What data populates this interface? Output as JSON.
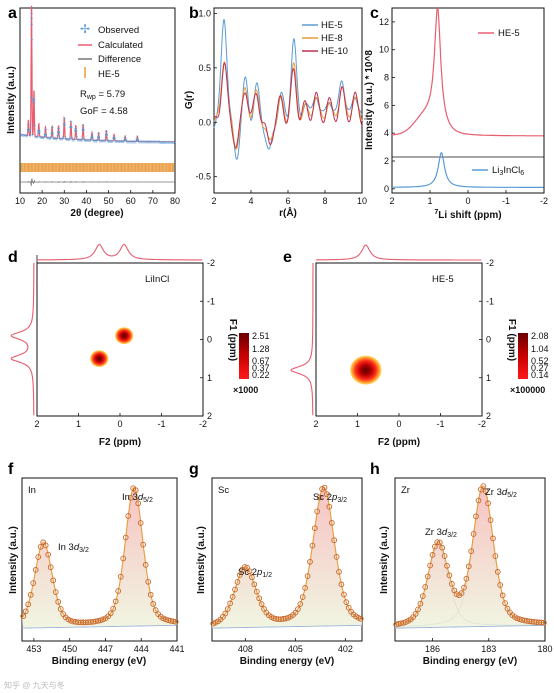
{
  "colors": {
    "axis": "#111111",
    "orange": "#e89a3c",
    "pink": "#e85d6f",
    "blue": "#5b9bd5",
    "gray": "#888888",
    "darkred": "#8b0000",
    "red": "#ff3030",
    "yellow": "#ffd75a"
  },
  "chart_data": [
    {
      "panel": "a",
      "type": "line",
      "xlabel": "2θ (degree)",
      "ylabel": "Intensity (a.u.)",
      "xlim": [
        10,
        80
      ],
      "xticks": [
        "10",
        "20",
        "30",
        "40",
        "50",
        "60",
        "70",
        "80"
      ],
      "legend": [
        "Observed",
        "Calculated",
        "Difference",
        "HE-5"
      ],
      "legend_location": "top-right",
      "annotations": {
        "rwp_label": "R",
        "rwp_sub": "wp",
        "rwp_value": " = 5.79",
        "gof": "GoF = 4.58"
      },
      "peaks": [
        {
          "x": 15.2,
          "h": 1.0
        },
        {
          "x": 16.3,
          "h": 0.35
        },
        {
          "x": 13.8,
          "h": 0.12
        },
        {
          "x": 18.5,
          "h": 0.1
        },
        {
          "x": 21.5,
          "h": 0.08
        },
        {
          "x": 24.5,
          "h": 0.09
        },
        {
          "x": 27.4,
          "h": 0.1
        },
        {
          "x": 30.0,
          "h": 0.16
        },
        {
          "x": 33.0,
          "h": 0.14
        },
        {
          "x": 35.2,
          "h": 0.11
        },
        {
          "x": 38.5,
          "h": 0.12
        },
        {
          "x": 42.5,
          "h": 0.06
        },
        {
          "x": 45.5,
          "h": 0.06
        },
        {
          "x": 49.0,
          "h": 0.08
        },
        {
          "x": 52.5,
          "h": 0.05
        },
        {
          "x": 57.5,
          "h": 0.04
        },
        {
          "x": 63.0,
          "h": 0.04
        }
      ]
    },
    {
      "panel": "b",
      "type": "line",
      "xlabel": "r(Å)",
      "ylabel": "G(r)",
      "xlim": [
        2,
        10
      ],
      "ylim": [
        -0.65,
        1.05
      ],
      "xticks": [
        "2",
        "4",
        "6",
        "8",
        "10"
      ],
      "yticks": [
        "-0.5",
        "0.0",
        "0.5",
        "1.0"
      ],
      "series": [
        {
          "name": "HE-5",
          "peaks": [
            [
              2.55,
              1.0
            ],
            [
              3.2,
              -0.3
            ],
            [
              3.7,
              0.35
            ],
            [
              4.3,
              0.3
            ],
            [
              5.0,
              -0.3
            ],
            [
              5.6,
              0.25
            ],
            [
              6.3,
              0.75
            ],
            [
              6.9,
              0.2
            ],
            [
              7.5,
              0.3
            ],
            [
              8.2,
              0.25
            ],
            [
              8.9,
              0.45
            ],
            [
              9.6,
              0.3
            ]
          ]
        },
        {
          "name": "HE-8",
          "peaks": [
            [
              2.55,
              0.6
            ],
            [
              3.2,
              -0.2
            ],
            [
              3.7,
              0.3
            ],
            [
              4.3,
              0.25
            ],
            [
              5.0,
              -0.2
            ],
            [
              5.6,
              0.2
            ],
            [
              6.3,
              0.5
            ],
            [
              6.9,
              0.15
            ],
            [
              7.5,
              0.25
            ],
            [
              8.2,
              0.2
            ],
            [
              8.9,
              0.35
            ],
            [
              9.6,
              0.25
            ]
          ]
        },
        {
          "name": "HE-10",
          "peaks": [
            [
              2.55,
              0.55
            ],
            [
              3.2,
              -0.2
            ],
            [
              3.7,
              0.3
            ],
            [
              4.3,
              0.25
            ],
            [
              5.0,
              -0.2
            ],
            [
              5.6,
              0.2
            ],
            [
              6.3,
              0.45
            ],
            [
              6.9,
              0.15
            ],
            [
              7.5,
              0.25
            ],
            [
              8.2,
              0.2
            ],
            [
              8.9,
              0.3
            ],
            [
              9.6,
              0.25
            ]
          ]
        }
      ]
    },
    {
      "panel": "c",
      "type": "line",
      "xlabel_prefix": "7",
      "xlabel_rest": "Li shift (ppm)",
      "ylabel": "Intensity (a.u.) * 10^8",
      "xlim": [
        2,
        -2
      ],
      "ylim": [
        -0.3,
        13
      ],
      "xticks": [
        "2",
        "1",
        "0",
        "-1",
        "-2"
      ],
      "yticks": [
        "0",
        "2",
        "4",
        "6",
        "8",
        "10",
        "12"
      ],
      "series": [
        {
          "name": "HE-5",
          "peak_x": 0.8,
          "peak_y": 12.2,
          "baseline": 3.8
        },
        {
          "name": "Li3InCl6",
          "peak_x": 0.7,
          "peak_y": 2.6,
          "baseline": 0.1
        }
      ],
      "legend": {
        "he5": "HE-5",
        "li_a": "Li",
        "li_sub1": "3",
        "li_b": "InCl",
        "li_sub2": "6"
      }
    },
    {
      "panel": "d",
      "type": "heatmap",
      "xlabel": "F2 (ppm)",
      "ylabel": "F1 (ppm)",
      "xlim": [
        2,
        -2
      ],
      "ylim": [
        -2,
        2
      ],
      "xticks": [
        "2",
        "1",
        "0",
        "-1",
        "-2"
      ],
      "yticks": [
        "-2",
        "-1",
        "0",
        "1",
        "2"
      ],
      "label": "LiInCl",
      "colorbar": {
        "ticks": [
          "2.51",
          "1.28",
          "0.67",
          "0.37",
          "0.22"
        ],
        "scale": "×1000"
      },
      "spots": [
        {
          "x": -0.1,
          "y": -0.1,
          "r": 0.22
        },
        {
          "x": 0.5,
          "y": 0.5,
          "r": 0.22
        }
      ]
    },
    {
      "panel": "e",
      "type": "heatmap",
      "xlabel": "F2 (ppm)",
      "ylabel": "F1 (ppm)",
      "xlim": [
        2,
        -2
      ],
      "ylim": [
        -2,
        2
      ],
      "xticks": [
        "2",
        "1",
        "0",
        "-1",
        "-2"
      ],
      "yticks": [
        "-2",
        "-1",
        "0",
        "1",
        "2"
      ],
      "label": "HE-5",
      "colorbar": {
        "ticks": [
          "2.08",
          "1.04",
          "0.52",
          "0.27",
          "0.14"
        ],
        "scale": "×100000"
      },
      "spots": [
        {
          "x": 0.8,
          "y": 0.8,
          "r": 0.38
        }
      ]
    },
    {
      "panel": "f",
      "type": "line",
      "xlabel": "Binding energy (eV)",
      "ylabel": "Intensity (a.u.)",
      "xlim": [
        454,
        441
      ],
      "xticks": [
        "453",
        "450",
        "447",
        "444",
        "441"
      ],
      "element": "In",
      "peaks": [
        {
          "label_a": "In 3",
          "label_b": "d",
          "label_sub": "3/2",
          "x": 452.2,
          "h": 0.6
        },
        {
          "label_a": "In 3",
          "label_b": "d",
          "label_sub": "5/2",
          "x": 444.6,
          "h": 0.98
        }
      ]
    },
    {
      "panel": "g",
      "type": "line",
      "xlabel": "Binding energy (eV)",
      "ylabel": "Intensity (a.u.)",
      "xlim": [
        410,
        401
      ],
      "xticks": [
        "408",
        "405",
        "402"
      ],
      "element": "Sc",
      "peaks": [
        {
          "label_a": "Sc 2",
          "label_b": "p",
          "label_sub": "1/2",
          "x": 408.0,
          "h": 0.42
        },
        {
          "label_a": "Sc 2",
          "label_b": "p",
          "label_sub": "3/2",
          "x": 403.3,
          "h": 0.98
        }
      ]
    },
    {
      "panel": "h",
      "type": "line",
      "xlabel": "Binding energy (eV)",
      "ylabel": "Intensity (a.u.)",
      "xlim": [
        188,
        180
      ],
      "xticks": [
        "186",
        "183",
        "180"
      ],
      "element": "Zr",
      "peaks": [
        {
          "label_a": "Zr 3",
          "label_b": "d",
          "label_sub": "3/2",
          "x": 185.7,
          "h": 0.58
        },
        {
          "label_a": "Zr 3",
          "label_b": "d",
          "label_sub": "5/2",
          "x": 183.3,
          "h": 0.98
        }
      ]
    }
  ],
  "panel_letters": [
    "a",
    "b",
    "c",
    "d",
    "e",
    "f",
    "g",
    "h"
  ],
  "watermark": "知乎 @ 九天与冬"
}
